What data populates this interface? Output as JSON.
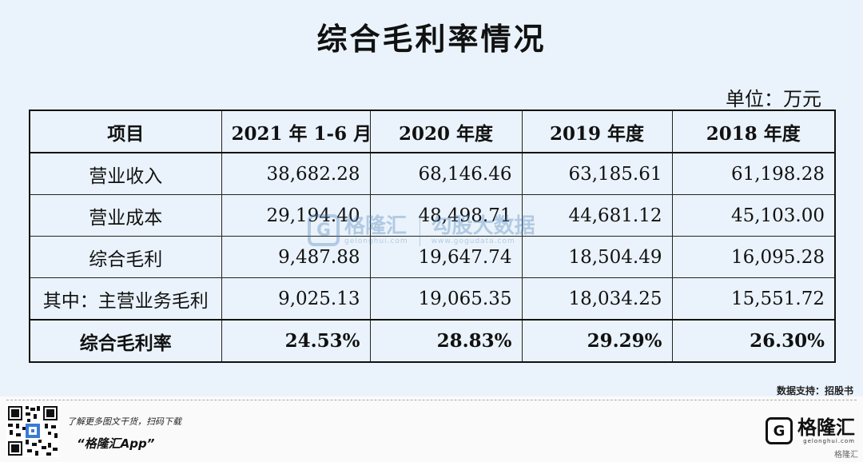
{
  "title": "综合毛利率情况",
  "unit": "单位：万元",
  "table": {
    "headers": [
      "项目",
      "2021 年 1-6 月",
      "2020 年度",
      "2019 年度",
      "2018 年度"
    ],
    "rows": [
      {
        "label": "营业收入",
        "values": [
          "38,682.28",
          "68,146.46",
          "63,185.61",
          "61,198.28"
        ]
      },
      {
        "label": "营业成本",
        "values": [
          "29,194.40",
          "48,498.71",
          "44,681.12",
          "45,103.00"
        ]
      },
      {
        "label": "综合毛利",
        "values": [
          "9,487.88",
          "19,647.74",
          "18,504.49",
          "16,095.28"
        ]
      },
      {
        "label": "其中：主营业务毛利",
        "values": [
          "9,025.13",
          "19,065.35",
          "18,034.25",
          "15,551.72"
        ]
      },
      {
        "label": "综合毛利率",
        "values": [
          "24.53%",
          "28.83%",
          "29.29%",
          "26.30%"
        ]
      }
    ]
  },
  "watermark": {
    "logo_letter": "G",
    "name": "格隆汇",
    "sub": "gelonghui.com",
    "name2": "勾股大数据",
    "sub2": "www.gogudata.com"
  },
  "source": "数据支持：招股书",
  "promo": {
    "line1": "了解更多图文干货，扫码下载",
    "line2": "“格隆汇App”"
  },
  "brand": {
    "logo_letter": "G",
    "name": "格隆汇",
    "sub": "gelonghui.com",
    "small": "格隆汇"
  },
  "colors": {
    "panel_bg": "#eaf3fb",
    "watermark": "#4a7fb8"
  }
}
